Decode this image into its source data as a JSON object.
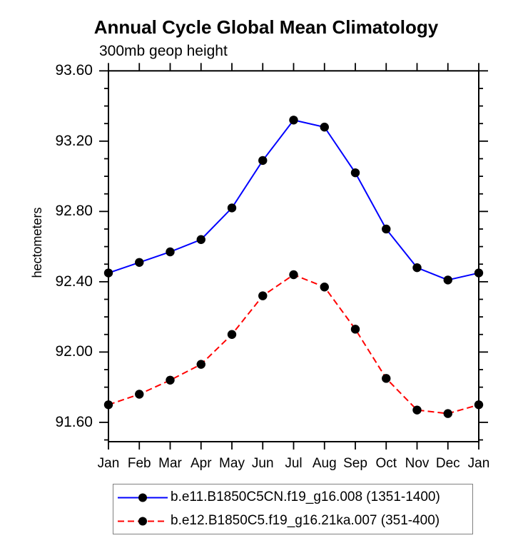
{
  "chart_data": {
    "type": "line",
    "title": "Annual Cycle Global Mean Climatology",
    "subtitle": "300mb geop height",
    "ylabel": "hectometers",
    "categories": [
      "Jan",
      "Feb",
      "Mar",
      "Apr",
      "May",
      "Jun",
      "Jul",
      "Aug",
      "Sep",
      "Oct",
      "Nov",
      "Dec",
      "Jan"
    ],
    "y_tick_labels": [
      "93.60",
      "93.20",
      "92.80",
      "92.40",
      "92.00",
      "91.60"
    ],
    "y_tick_values": [
      93.6,
      93.2,
      92.8,
      92.4,
      92.0,
      91.6
    ],
    "minor_tick_step": 0.1,
    "ylim": [
      91.49,
      93.6
    ],
    "grid": false,
    "legend_position": "bottom",
    "series": [
      {
        "name": "b.e11.B1850C5CN.f19_g16.008 (1351-1400)",
        "color": "#0000ff",
        "line_style": "solid",
        "marker": "filled-circle",
        "marker_color": "#000000",
        "values": [
          92.45,
          92.51,
          92.57,
          92.64,
          92.82,
          93.09,
          93.32,
          93.28,
          93.02,
          92.7,
          92.48,
          92.41,
          92.45
        ]
      },
      {
        "name": "b.e12.B1850C5.f19_g16.21ka.007 (351-400)",
        "color": "#ff0000",
        "line_style": "dashed",
        "marker": "filled-circle",
        "marker_color": "#000000",
        "values": [
          91.7,
          91.76,
          91.84,
          91.93,
          92.1,
          92.32,
          92.44,
          92.37,
          92.13,
          91.85,
          91.67,
          91.65,
          91.7
        ]
      }
    ]
  }
}
